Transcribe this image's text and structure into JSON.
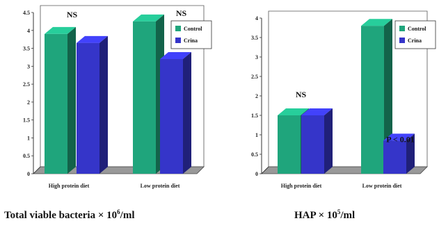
{
  "colors": {
    "control": "#1fa57c",
    "crina": "#3535c9",
    "floor": "#999999",
    "wall": "#ffffff"
  },
  "chart_data": [
    {
      "type": "bar",
      "categories": [
        "High protein diet",
        "Low protein diet"
      ],
      "series": [
        {
          "name": "Control",
          "values": [
            3.9,
            4.25
          ]
        },
        {
          "name": "Crina",
          "values": [
            3.65,
            3.2
          ]
        }
      ],
      "ylim": [
        0,
        4.5
      ],
      "yticks": [
        "0",
        "0.5",
        "1",
        "1.5",
        "2",
        "2.5",
        "3",
        "3.5",
        "4",
        "4.5"
      ],
      "annotations": [
        "NS",
        "NS"
      ],
      "caption": {
        "main": "Total viable bacteria ×",
        "base": "10",
        "exp": "6",
        "unit": "/ml"
      },
      "legend_position": "top-right"
    },
    {
      "type": "bar",
      "categories": [
        "High protein diet",
        "Low protein diet"
      ],
      "series": [
        {
          "name": "Control",
          "values": [
            1.5,
            3.8
          ]
        },
        {
          "name": "Crina",
          "values": [
            1.5,
            0.85
          ]
        }
      ],
      "ylim": [
        0,
        4
      ],
      "yticks": [
        "0",
        "0.5",
        "1",
        "1.5",
        "2",
        "2.5",
        "3",
        "3.5",
        "4"
      ],
      "annotations": [
        "NS",
        "P < 0.01"
      ],
      "caption": {
        "main": "HAP ×",
        "base": "10",
        "exp": "5",
        "unit": "/ml"
      },
      "legend_position": "top-right"
    }
  ]
}
